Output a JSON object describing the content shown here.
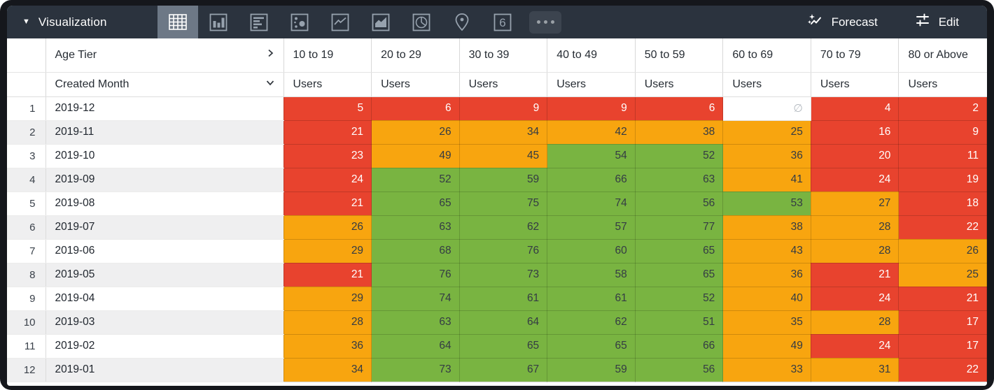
{
  "topbar": {
    "selector_label": "Visualization",
    "viz_types": [
      "table",
      "column-chart",
      "bar-chart",
      "scatter",
      "line-chart",
      "area-chart",
      "pie-chart",
      "map",
      "single-value",
      "more-options"
    ],
    "selected_viz": "table",
    "single_value_icon_text": "6",
    "forecast_label": "Forecast",
    "edit_label": "Edit"
  },
  "table": {
    "pivot_field": "Age Tier",
    "row_field": "Created Month",
    "measure_label": "Users",
    "null_symbol": "∅",
    "tiers": [
      "10 to 19",
      "20 to 29",
      "30 to 39",
      "40 to 49",
      "50 to 59",
      "60 to 69",
      "70 to 79",
      "80 or Above"
    ],
    "rows": [
      {
        "n": 1,
        "month": "2019-12",
        "values": [
          5,
          6,
          9,
          9,
          6,
          null,
          4,
          2
        ],
        "colors": [
          "red",
          "red",
          "red",
          "red",
          "red",
          "null",
          "red",
          "red"
        ]
      },
      {
        "n": 2,
        "month": "2019-11",
        "values": [
          21,
          26,
          34,
          42,
          38,
          25,
          16,
          9
        ],
        "colors": [
          "red",
          "orange",
          "orange",
          "orange",
          "orange",
          "orange",
          "red",
          "red"
        ]
      },
      {
        "n": 3,
        "month": "2019-10",
        "values": [
          23,
          49,
          45,
          54,
          52,
          36,
          20,
          11
        ],
        "colors": [
          "red",
          "orange",
          "orange",
          "green",
          "green",
          "orange",
          "red",
          "red"
        ]
      },
      {
        "n": 4,
        "month": "2019-09",
        "values": [
          24,
          52,
          59,
          66,
          63,
          41,
          24,
          19
        ],
        "colors": [
          "red",
          "green",
          "green",
          "green",
          "green",
          "orange",
          "red",
          "red"
        ]
      },
      {
        "n": 5,
        "month": "2019-08",
        "values": [
          21,
          65,
          75,
          74,
          56,
          53,
          27,
          18
        ],
        "colors": [
          "red",
          "green",
          "green",
          "green",
          "green",
          "green",
          "orange",
          "red"
        ]
      },
      {
        "n": 6,
        "month": "2019-07",
        "values": [
          26,
          63,
          62,
          57,
          77,
          38,
          28,
          22
        ],
        "colors": [
          "orange",
          "green",
          "green",
          "green",
          "green",
          "orange",
          "orange",
          "red"
        ]
      },
      {
        "n": 7,
        "month": "2019-06",
        "values": [
          29,
          68,
          76,
          60,
          65,
          43,
          28,
          26
        ],
        "colors": [
          "orange",
          "green",
          "green",
          "green",
          "green",
          "orange",
          "orange",
          "orange"
        ]
      },
      {
        "n": 8,
        "month": "2019-05",
        "values": [
          21,
          76,
          73,
          58,
          65,
          36,
          21,
          25
        ],
        "colors": [
          "red",
          "green",
          "green",
          "green",
          "green",
          "orange",
          "red",
          "orange"
        ]
      },
      {
        "n": 9,
        "month": "2019-04",
        "values": [
          29,
          74,
          61,
          61,
          52,
          40,
          24,
          21
        ],
        "colors": [
          "orange",
          "green",
          "green",
          "green",
          "green",
          "orange",
          "red",
          "red"
        ]
      },
      {
        "n": 10,
        "month": "2019-03",
        "values": [
          28,
          63,
          64,
          62,
          51,
          35,
          28,
          17
        ],
        "colors": [
          "orange",
          "green",
          "green",
          "green",
          "green",
          "orange",
          "orange",
          "red"
        ]
      },
      {
        "n": 11,
        "month": "2019-02",
        "values": [
          36,
          64,
          65,
          65,
          66,
          49,
          24,
          17
        ],
        "colors": [
          "orange",
          "green",
          "green",
          "green",
          "green",
          "orange",
          "red",
          "red"
        ]
      },
      {
        "n": 12,
        "month": "2019-01",
        "values": [
          34,
          73,
          67,
          59,
          56,
          33,
          31,
          22
        ],
        "colors": [
          "orange",
          "green",
          "green",
          "green",
          "green",
          "orange",
          "orange",
          "red"
        ]
      }
    ]
  },
  "colors": {
    "red": "#e8432e",
    "orange": "#f8a50f",
    "green": "#79b441",
    "topbar": "#2b333e",
    "topbar_selected": "#6d7886",
    "icon": "#97a2ae",
    "stripe": "#efeff0"
  }
}
